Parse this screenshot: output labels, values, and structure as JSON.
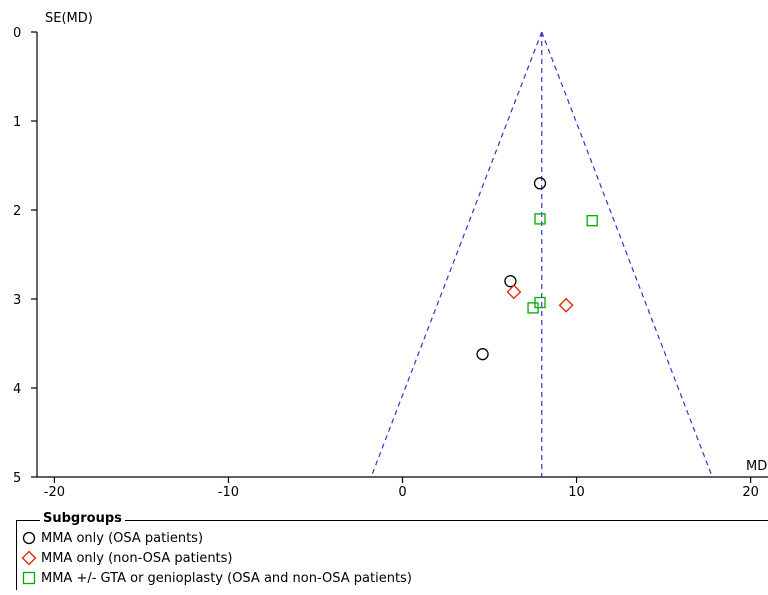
{
  "chart_data": {
    "type": "scatter",
    "subtype": "funnel_plot",
    "xlabel": "MD",
    "ylabel": "SE(MD)",
    "xlim": [
      -21,
      21
    ],
    "ylim": [
      0,
      5
    ],
    "y_reversed": true,
    "x_ticks": [
      "-20",
      "-10",
      "0",
      "10",
      "20"
    ],
    "x_tick_values": [
      -20,
      -10,
      0,
      10,
      20
    ],
    "y_ticks": [
      "0",
      "1",
      "2",
      "3",
      "4",
      "5"
    ],
    "y_tick_values": [
      0,
      1,
      2,
      3,
      4,
      5
    ],
    "pooled_md": 8.0,
    "funnel": {
      "apex": [
        8.0,
        0
      ],
      "base_left": [
        -1.8,
        5
      ],
      "base_right": [
        17.8,
        5
      ],
      "style": "dashed",
      "color": "#3333cc"
    },
    "series": [
      {
        "name": "MMA only (OSA patients)",
        "marker": "circle",
        "color": "#000000",
        "points": [
          {
            "x": 7.9,
            "y": 1.7
          },
          {
            "x": 6.2,
            "y": 2.8
          },
          {
            "x": 4.6,
            "y": 3.62
          }
        ]
      },
      {
        "name": "MMA only (non-OSA patients)",
        "marker": "diamond",
        "color": "#dd2200",
        "points": [
          {
            "x": 6.4,
            "y": 2.92
          },
          {
            "x": 9.4,
            "y": 3.07
          }
        ]
      },
      {
        "name": "MMA +/- GTA or genioplasty (OSA and non-OSA patients)",
        "marker": "square",
        "color": "#00aa00",
        "points": [
          {
            "x": 7.9,
            "y": 2.1
          },
          {
            "x": 10.9,
            "y": 2.12
          },
          {
            "x": 7.9,
            "y": 3.04
          },
          {
            "x": 7.5,
            "y": 3.1
          }
        ]
      }
    ],
    "legend": {
      "title": "Subgroups",
      "placement": "bottom"
    }
  }
}
